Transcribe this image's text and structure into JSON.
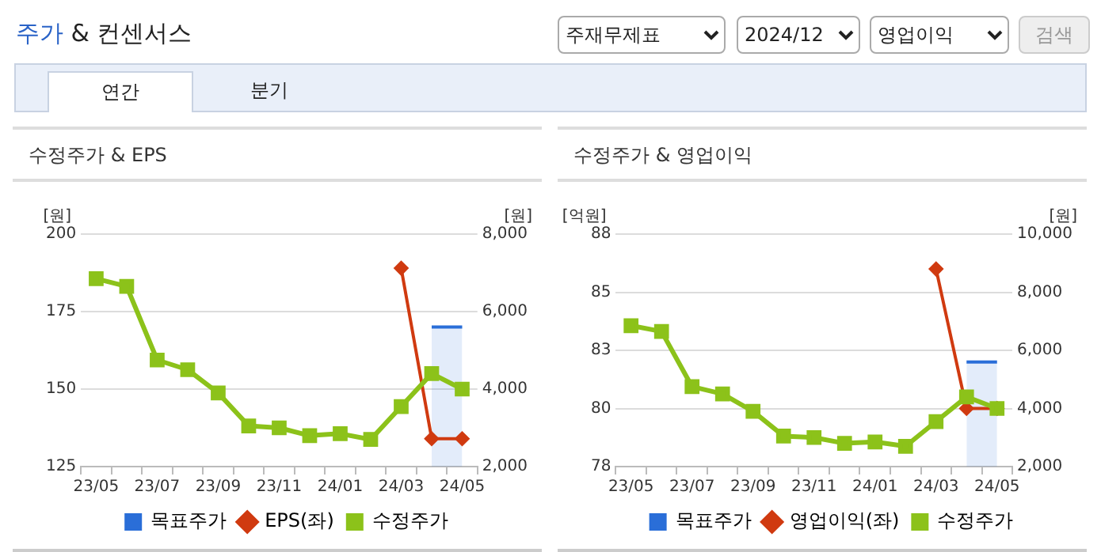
{
  "chart_data": [
    {
      "type": "other",
      "title": "주가 & 컨센서스",
      "annotations": [
        "주재무제표",
        "2024/12",
        "영업이익",
        "검색",
        "연간",
        "분기"
      ]
    },
    {
      "type": "line",
      "title": "수정주가 & EPS",
      "ylabel": "[원]",
      "y2label": "[원]",
      "categories": [
        "23/05",
        null,
        "23/07",
        null,
        "23/09",
        null,
        "23/11",
        null,
        "24/01",
        null,
        "24/03",
        null,
        "24/05"
      ],
      "ylim": [
        125,
        200
      ],
      "yticks": [
        125,
        150,
        175,
        200
      ],
      "y2lim": [
        2000,
        8000
      ],
      "y2ticks": [
        {
          "value": 2000,
          "label": "2,000"
        },
        {
          "value": 4000,
          "label": "4,000"
        },
        {
          "value": 6000,
          "label": "6,000"
        },
        {
          "value": 8000,
          "label": "8,000"
        }
      ],
      "grid": "y",
      "legend": "bottom",
      "series": [
        {
          "name": "목표주가",
          "type": "area",
          "axis": "y2",
          "color": "#2a6ed8",
          "marker": "none",
          "values": [
            null,
            null,
            null,
            null,
            null,
            null,
            null,
            null,
            null,
            null,
            null,
            5600,
            5600
          ]
        },
        {
          "name": "EPS(좌)",
          "color": "#d03a10",
          "marker": "diamond",
          "values": [
            null,
            null,
            null,
            null,
            null,
            null,
            null,
            null,
            null,
            null,
            189,
            134,
            134
          ]
        },
        {
          "name": "수정주가",
          "axis": "y2",
          "color": "#8cc21a",
          "marker": "square",
          "values": [
            6850,
            6650,
            4750,
            4500,
            3900,
            3050,
            3000,
            2800,
            2850,
            2700,
            3550,
            4400,
            4000
          ]
        }
      ]
    },
    {
      "type": "line",
      "title": "수정주가 & 영업이익",
      "ylabel": "[억원]",
      "y2label": "[원]",
      "categories": [
        "23/05",
        null,
        "23/07",
        null,
        "23/09",
        null,
        "23/11",
        null,
        "24/01",
        null,
        "24/03",
        null,
        "24/05"
      ],
      "ylim": [
        78,
        88
      ],
      "yticks": [
        78,
        {
          "value": 80.5,
          "label": "80"
        },
        {
          "value": 83,
          "label": "83"
        },
        {
          "value": 85.5,
          "label": "85"
        },
        88
      ],
      "y2lim": [
        2000,
        10000
      ],
      "y2ticks": [
        {
          "value": 2000,
          "label": "2,000"
        },
        {
          "value": 4000,
          "label": "4,000"
        },
        {
          "value": 6000,
          "label": "6,000"
        },
        {
          "value": 8000,
          "label": "8,000"
        },
        {
          "value": 10000,
          "label": "10,000"
        }
      ],
      "grid": "y",
      "legend": "bottom",
      "series": [
        {
          "name": "목표주가",
          "type": "area",
          "axis": "y2",
          "color": "#2a6ed8",
          "marker": "none",
          "values": [
            null,
            null,
            null,
            null,
            null,
            null,
            null,
            null,
            null,
            null,
            null,
            5600,
            5600
          ]
        },
        {
          "name": "영업이익(좌)",
          "color": "#d03a10",
          "marker": "diamond",
          "values": [
            null,
            null,
            null,
            null,
            null,
            null,
            null,
            null,
            null,
            null,
            86.5,
            80.5,
            80.5
          ]
        },
        {
          "name": "수정주가",
          "axis": "y2",
          "color": "#8cc21a",
          "marker": "square",
          "values": [
            6850,
            6650,
            4750,
            4500,
            3900,
            3050,
            3000,
            2800,
            2850,
            2700,
            3550,
            4400,
            4000
          ]
        }
      ]
    }
  ]
}
